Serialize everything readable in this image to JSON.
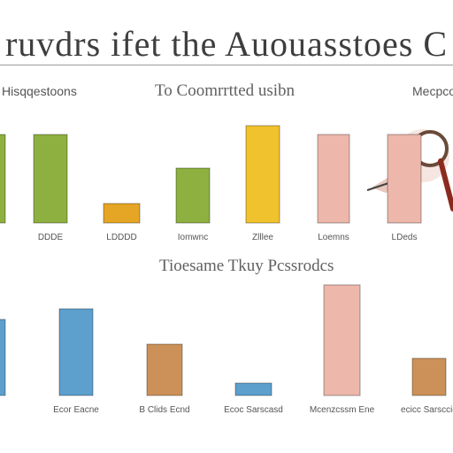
{
  "title": "ruvdrs ifet the Auouasstoes C",
  "chart_data": [
    {
      "type": "bar",
      "title": "Hisqqestoons",
      "categories": [
        "",
        "DDDE"
      ],
      "values": [
        100,
        100
      ]
    },
    {
      "type": "bar",
      "title": "To Coomrrtted usibn",
      "categories": [
        "LDDDD",
        "Iomwnc",
        "Zlllee",
        "Loemns"
      ],
      "values": [
        22,
        62,
        110,
        100
      ]
    },
    {
      "type": "bar",
      "title": "Mecpco",
      "categories": [
        "LDeds"
      ],
      "values": [
        100
      ]
    },
    {
      "type": "bar",
      "title": "Tioesame Tkuy Pcssrodcs",
      "categories": [
        "",
        "Ecor Eacne",
        "B Clids Ecnd",
        "Ecoc Sarscasd",
        "Mcenzcssm Ene",
        "ecicc Sarsccie"
      ],
      "values": [
        86,
        98,
        58,
        14,
        125,
        42
      ]
    }
  ],
  "colors": {
    "green": "#8db040",
    "orange": "#e6a625",
    "yellow": "#f0c22e",
    "pink": "#eeb7ab",
    "blue": "#5d9fcd",
    "brown": "#cc9158",
    "axis": "#888888"
  }
}
